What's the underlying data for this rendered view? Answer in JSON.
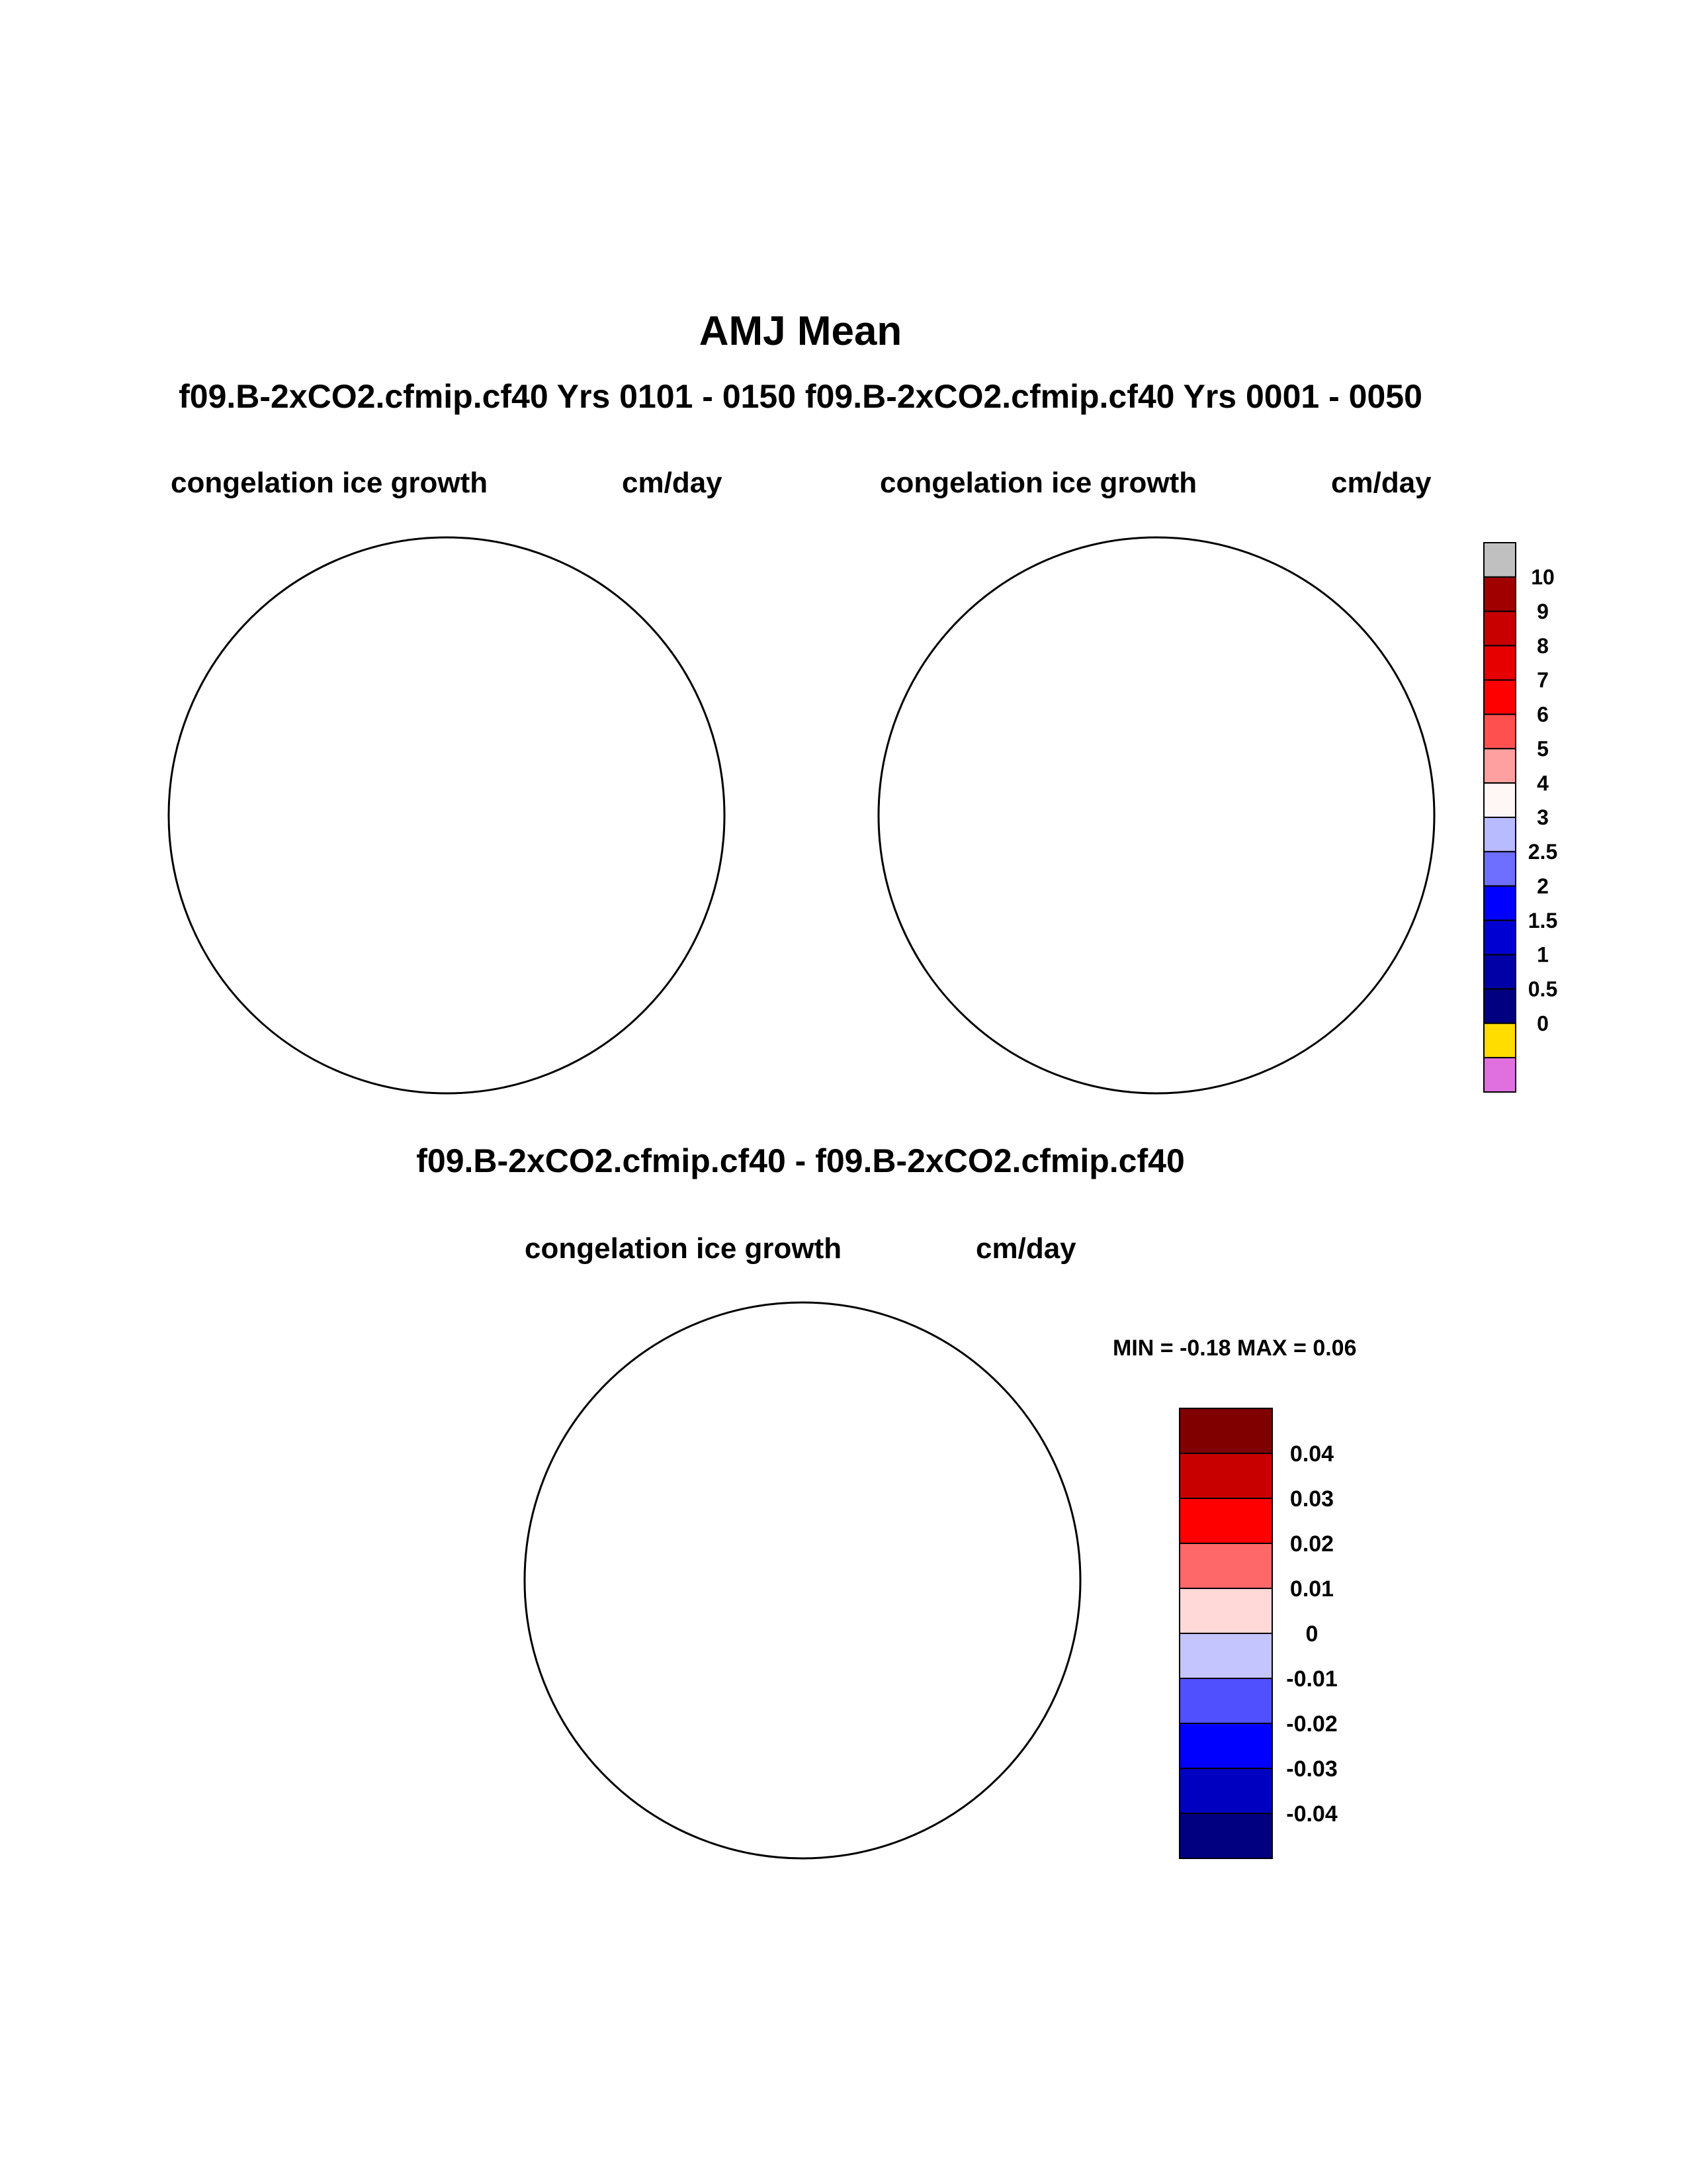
{
  "title": "AMJ Mean",
  "subtitle": "f09.B-2xCO2.cfmip.cf40  Yrs 0101 - 0150 f09.B-2xCO2.cfmip.cf40  Yrs 0001 - 0050",
  "panels": [
    {
      "variable": "congelation ice growth",
      "units": "cm/day",
      "case": "f09.B-2xCO2.cfmip.cf40",
      "years": "Yrs 0101 - 0150"
    },
    {
      "variable": "congelation ice growth",
      "units": "cm/day",
      "case": "f09.B-2xCO2.cfmip.cf40",
      "years": "Yrs 0001 - 0050"
    }
  ],
  "difference": {
    "title": "f09.B-2xCO2.cfmip.cf40 - f09.B-2xCO2.cfmip.cf40",
    "variable": "congelation ice growth",
    "units": "cm/day",
    "minmax": "MIN =  -0.18 MAX =   0.06"
  },
  "colorbar_top": {
    "labels": [
      "10",
      "9",
      "8",
      "7",
      "6",
      "5",
      "4",
      "3",
      "2.5",
      "2",
      "1.5",
      "1",
      "0.5",
      "0"
    ],
    "colors": [
      "#c0c0c0",
      "#a00000",
      "#c80000",
      "#e60000",
      "#ff0000",
      "#ff5050",
      "#ffa0a0",
      "#fff6f6",
      "#b8bcff",
      "#6e6eff",
      "#0000ff",
      "#0000d2",
      "#0000a6",
      "#000080",
      "#ffdd00",
      "#e070e0"
    ]
  },
  "colorbar_diff": {
    "labels": [
      "0.04",
      "0.03",
      "0.02",
      "0.01",
      "0",
      "-0.01",
      "-0.02",
      "-0.03",
      "-0.04"
    ],
    "colors": [
      "#800000",
      "#c80000",
      "#ff0000",
      "#ff6868",
      "#ffd8d8",
      "#c4c4ff",
      "#5050ff",
      "#0000ff",
      "#0000c0",
      "#000080"
    ]
  },
  "colors": {
    "land": "#c0c0c0",
    "ice_growth": "#ffdd00",
    "diff_main": "#1414e6"
  }
}
